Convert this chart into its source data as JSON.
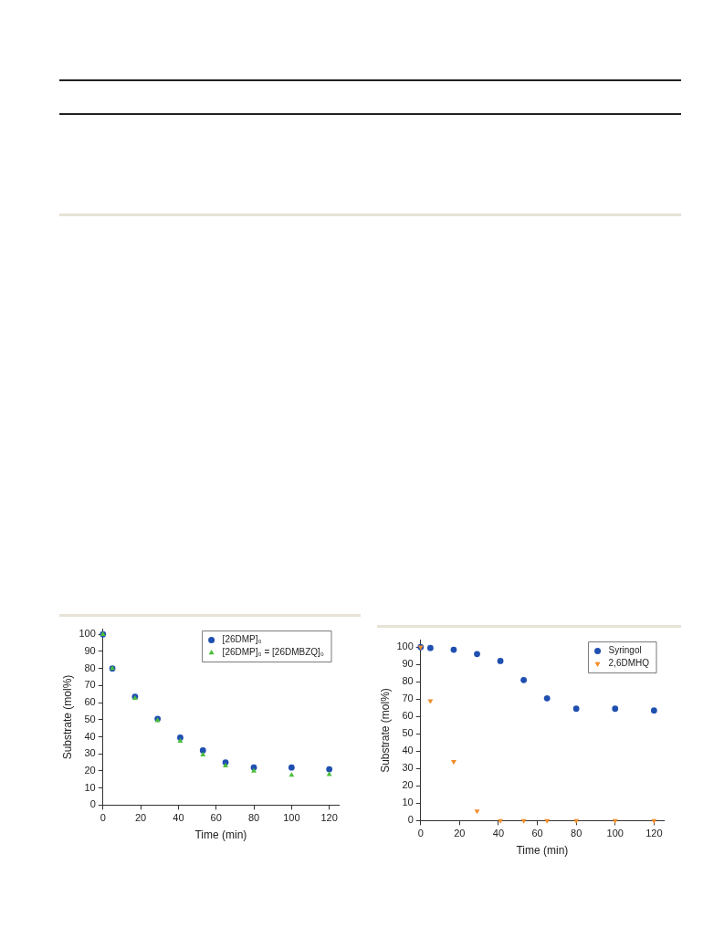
{
  "chart_data": [
    {
      "type": "scatter",
      "xlabel": "Time (min)",
      "ylabel": "Substrate (mol%)",
      "xlim": [
        0,
        125
      ],
      "ylim": [
        0,
        103
      ],
      "xticks": [
        0,
        20,
        40,
        60,
        80,
        100,
        120
      ],
      "yticks": [
        0,
        10,
        20,
        30,
        40,
        50,
        60,
        70,
        80,
        90,
        100
      ],
      "grid": false,
      "legend": "top right",
      "x": [
        0,
        5,
        17,
        29,
        41,
        53,
        65,
        80,
        100,
        120
      ],
      "series": [
        {
          "name": "[26DMP]₀",
          "color": "#1f4fb0",
          "marker": "circle",
          "values": [
            100,
            80,
            63.5,
            50.5,
            39.5,
            32,
            25,
            22,
            22,
            21
          ]
        },
        {
          "name": "[26DMP]₀ = [26DMBZQ]₀",
          "color": "#4cbf3a",
          "marker": "triangle",
          "values": [
            100,
            80,
            62.5,
            49.5,
            37.5,
            29.5,
            23,
            20,
            17.5,
            18
          ]
        }
      ]
    },
    {
      "type": "scatter",
      "xlabel": "Time (min)",
      "ylabel": "Substrate (mol%)",
      "xlim": [
        0,
        125
      ],
      "ylim": [
        0,
        104
      ],
      "xticks": [
        0,
        20,
        40,
        60,
        80,
        100,
        120
      ],
      "yticks": [
        0,
        10,
        20,
        30,
        40,
        50,
        60,
        70,
        80,
        90,
        100
      ],
      "grid": false,
      "legend": "top right",
      "x": [
        0,
        5,
        17,
        29,
        41,
        53,
        65,
        80,
        100,
        120
      ],
      "series": [
        {
          "name": "Syringol",
          "color": "#1f4fb0",
          "marker": "circle",
          "values": [
            100,
            99.5,
            98.5,
            96,
            92,
            81,
            70.5,
            64.5,
            64.5,
            63.5
          ]
        },
        {
          "name": "2,6DMHQ",
          "color": "#f28c28",
          "marker": "triangle-down",
          "values": [
            100,
            69,
            34,
            5.5,
            0,
            0,
            0,
            0,
            0,
            0
          ]
        }
      ]
    }
  ]
}
